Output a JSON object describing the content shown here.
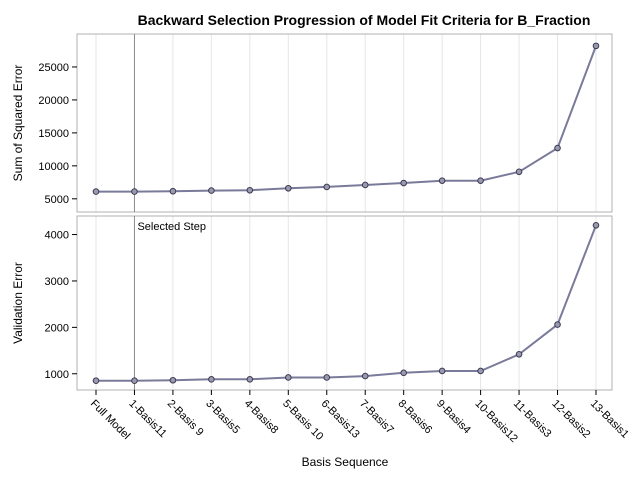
{
  "chart_data": {
    "type": "line",
    "title": "Backward Selection Progression of Model Fit Criteria for B_Fraction",
    "xlabel": "Basis Sequence",
    "categories": [
      "Full Model",
      "1-Basis11",
      "2-Basis 9",
      "3-Basis5",
      "4-Basis8",
      "5-Basis 10",
      "6-Basis13",
      "7-Basis7",
      "8-Basis6",
      "9-Basis4",
      "10-Basis12",
      "11-Basis3",
      "12-Basis2",
      "13-Basis1"
    ],
    "selected_step": {
      "category": "1-Basis11",
      "label": "Selected Step"
    },
    "grid": true,
    "colors": {
      "line": "#7a7a9a",
      "marker_fill": "#9a9aae",
      "marker_stroke": "#3a3a55",
      "grid": "#e6e6e6",
      "ref_line": "#8c8c8c",
      "frame": "#b0b0b0"
    },
    "panels": [
      {
        "ylabel": "Sum of Squared Error",
        "ylim": [
          3000,
          30000
        ],
        "yticks": [
          5000,
          10000,
          15000,
          20000,
          25000
        ],
        "values": [
          6100,
          6100,
          6150,
          6250,
          6300,
          6600,
          6800,
          7100,
          7400,
          7750,
          7750,
          9100,
          12700,
          28200
        ]
      },
      {
        "ylabel": "Validation Error",
        "ylim": [
          650,
          4400
        ],
        "yticks": [
          1000,
          2000,
          3000,
          4000
        ],
        "values": [
          850,
          850,
          860,
          880,
          880,
          920,
          920,
          950,
          1020,
          1060,
          1060,
          1420,
          2060,
          4200
        ]
      }
    ]
  }
}
